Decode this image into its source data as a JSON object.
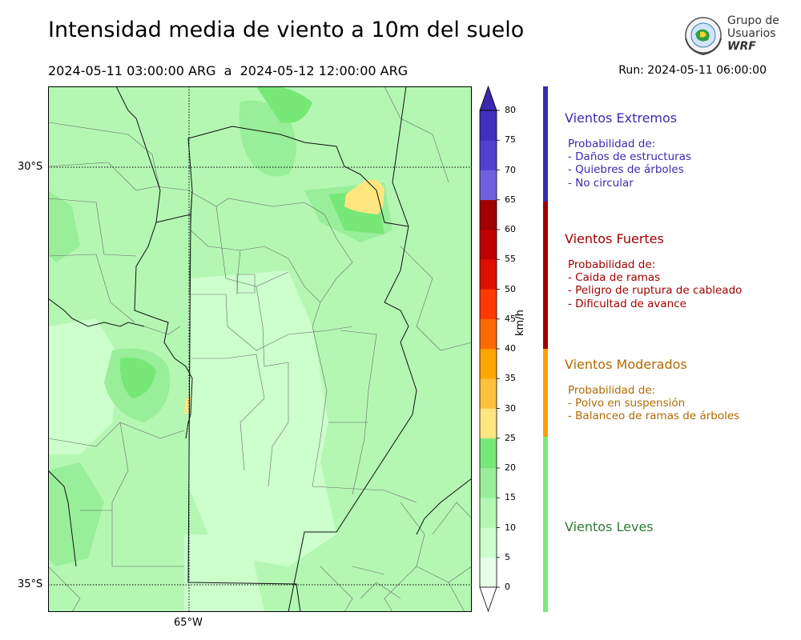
{
  "header": {
    "title": "Intensidad media de viento a 10m del suelo",
    "period": "2024-05-11 03:00:00 ARG  a  2024-05-12 12:00:00 ARG",
    "run": "Run: 2024-05-11 06:00:00"
  },
  "logo": {
    "line1": "Grupo de",
    "line2": "Usuarios",
    "line3": "WRF"
  },
  "map": {
    "lat_labels": [
      "30°S",
      "35°S"
    ],
    "lon_labels": [
      "65°W"
    ]
  },
  "colorbar": {
    "unit": "km/h",
    "ticks": [
      "0",
      "5",
      "10",
      "15",
      "20",
      "25",
      "30",
      "35",
      "40",
      "45",
      "50",
      "55",
      "60",
      "65",
      "70",
      "75",
      "80"
    ],
    "colors": [
      "#e6ffe6",
      "#ccffcc",
      "#b3f7b3",
      "#99ee99",
      "#77e877",
      "#ffe680",
      "#ffc040",
      "#ffa500",
      "#ff6a00",
      "#ff3a00",
      "#e01000",
      "#c00000",
      "#a00000",
      "#7060e0",
      "#5040d0",
      "#4030c0",
      "#3a28b0"
    ]
  },
  "categories": [
    {
      "title": "Vientos Extremos",
      "color": "#3a2ab0",
      "lines": "Probabilidad de:\n- Daños de estructuras\n- Quiebres de árboles\n- No circular"
    },
    {
      "title": "Vientos Fuertes",
      "color": "#a00000",
      "lines": "Probabilidad de:\n- Caida de ramas\n- Peligro de ruptura de cableado\n- Dificultad de avance"
    },
    {
      "title": "Vientos Moderados",
      "color": "#b06a00",
      "lines": "Probabilidad de:\n- Polvo en suspensión\n- Balanceo de ramas de árboles"
    },
    {
      "title": "Vientos Leves",
      "color": "#2e7d32",
      "lines": ""
    }
  ],
  "category_bar_colors": [
    "#3a2ab0",
    "#a00000",
    "#ffa000",
    "#77ee77"
  ]
}
